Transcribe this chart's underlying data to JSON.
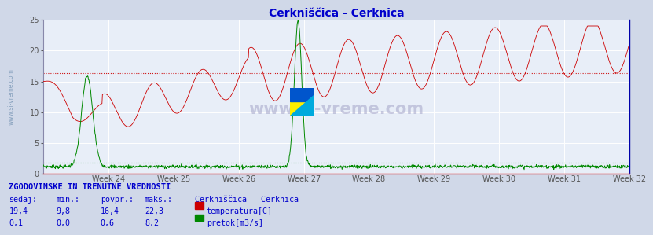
{
  "title": "Cerkniščica - Cerknica",
  "title_color": "#0000cc",
  "bg_color": "#d0d8e8",
  "plot_bg_color": "#e8eef8",
  "grid_color": "#ffffff",
  "temp_color": "#cc0000",
  "flow_color": "#008800",
  "watermark": "www.si-vreme.com",
  "bottom_title": "ZGODOVINSKE IN TRENUTNE VREDNOSTI",
  "bottom_station": "Cerkniščica - Cerknica",
  "sedaj_temp": "19,4",
  "min_temp": "9,8",
  "povpr_temp": "16,4",
  "maks_temp": "22,3",
  "sedaj_flow": "0,1",
  "min_flow": "0,0",
  "povpr_flow": "0,6",
  "maks_flow": "8,2",
  "label_temp": "temperatura[C]",
  "label_flow": "pretok[m3/s]",
  "week_labels": [
    "Week 24",
    "Week 25",
    "Week 26",
    "Week 27",
    "Week 28",
    "Week 29",
    "Week 30",
    "Week 31",
    "Week 32"
  ],
  "y_max": 25,
  "y_ticks": [
    0,
    5,
    10,
    15,
    20,
    25
  ],
  "temp_avg": 16.4,
  "flow_avg": 0.6,
  "flow_max_val": 8.2,
  "n_points": 1344
}
